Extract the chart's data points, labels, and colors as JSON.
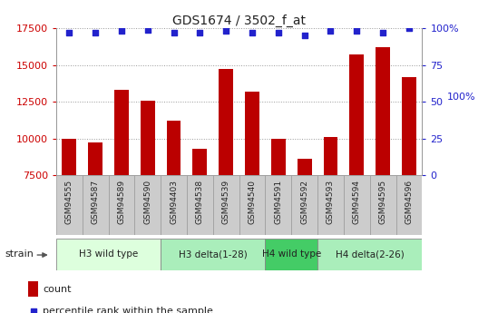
{
  "title": "GDS1674 / 3502_f_at",
  "samples": [
    "GSM94555",
    "GSM94587",
    "GSM94589",
    "GSM94590",
    "GSM94403",
    "GSM94538",
    "GSM94539",
    "GSM94540",
    "GSM94591",
    "GSM94592",
    "GSM94593",
    "GSM94594",
    "GSM94595",
    "GSM94596"
  ],
  "counts": [
    10000,
    9750,
    13300,
    12600,
    11200,
    9300,
    14750,
    13200,
    10000,
    8600,
    10100,
    15700,
    16200,
    14200
  ],
  "percentiles": [
    97,
    97,
    98,
    99,
    97,
    97,
    98,
    97,
    97,
    95,
    98,
    98,
    97,
    100
  ],
  "bar_color": "#bb0000",
  "dot_color": "#2222cc",
  "ymin": 7500,
  "ymax": 17500,
  "yticks": [
    7500,
    10000,
    12500,
    15000,
    17500
  ],
  "right_yticks": [
    0,
    25,
    50,
    75,
    100
  ],
  "strain_groups": [
    {
      "label": "H3 wild type",
      "start": 0,
      "end": 3,
      "color": "#ddffdd"
    },
    {
      "label": "H3 delta(1-28)",
      "start": 4,
      "end": 7,
      "color": "#aaeebb"
    },
    {
      "label": "H4 wild type",
      "start": 8,
      "end": 9,
      "color": "#44cc66"
    },
    {
      "label": "H4 delta(2-26)",
      "start": 10,
      "end": 13,
      "color": "#aaeebb"
    }
  ],
  "left_tick_color": "#cc0000",
  "right_tick_color": "#2222cc",
  "title_color": "#222222",
  "grid_color": "#999999",
  "sample_box_color": "#cccccc",
  "sample_box_edge": "#999999",
  "bg_color": "#ffffff"
}
